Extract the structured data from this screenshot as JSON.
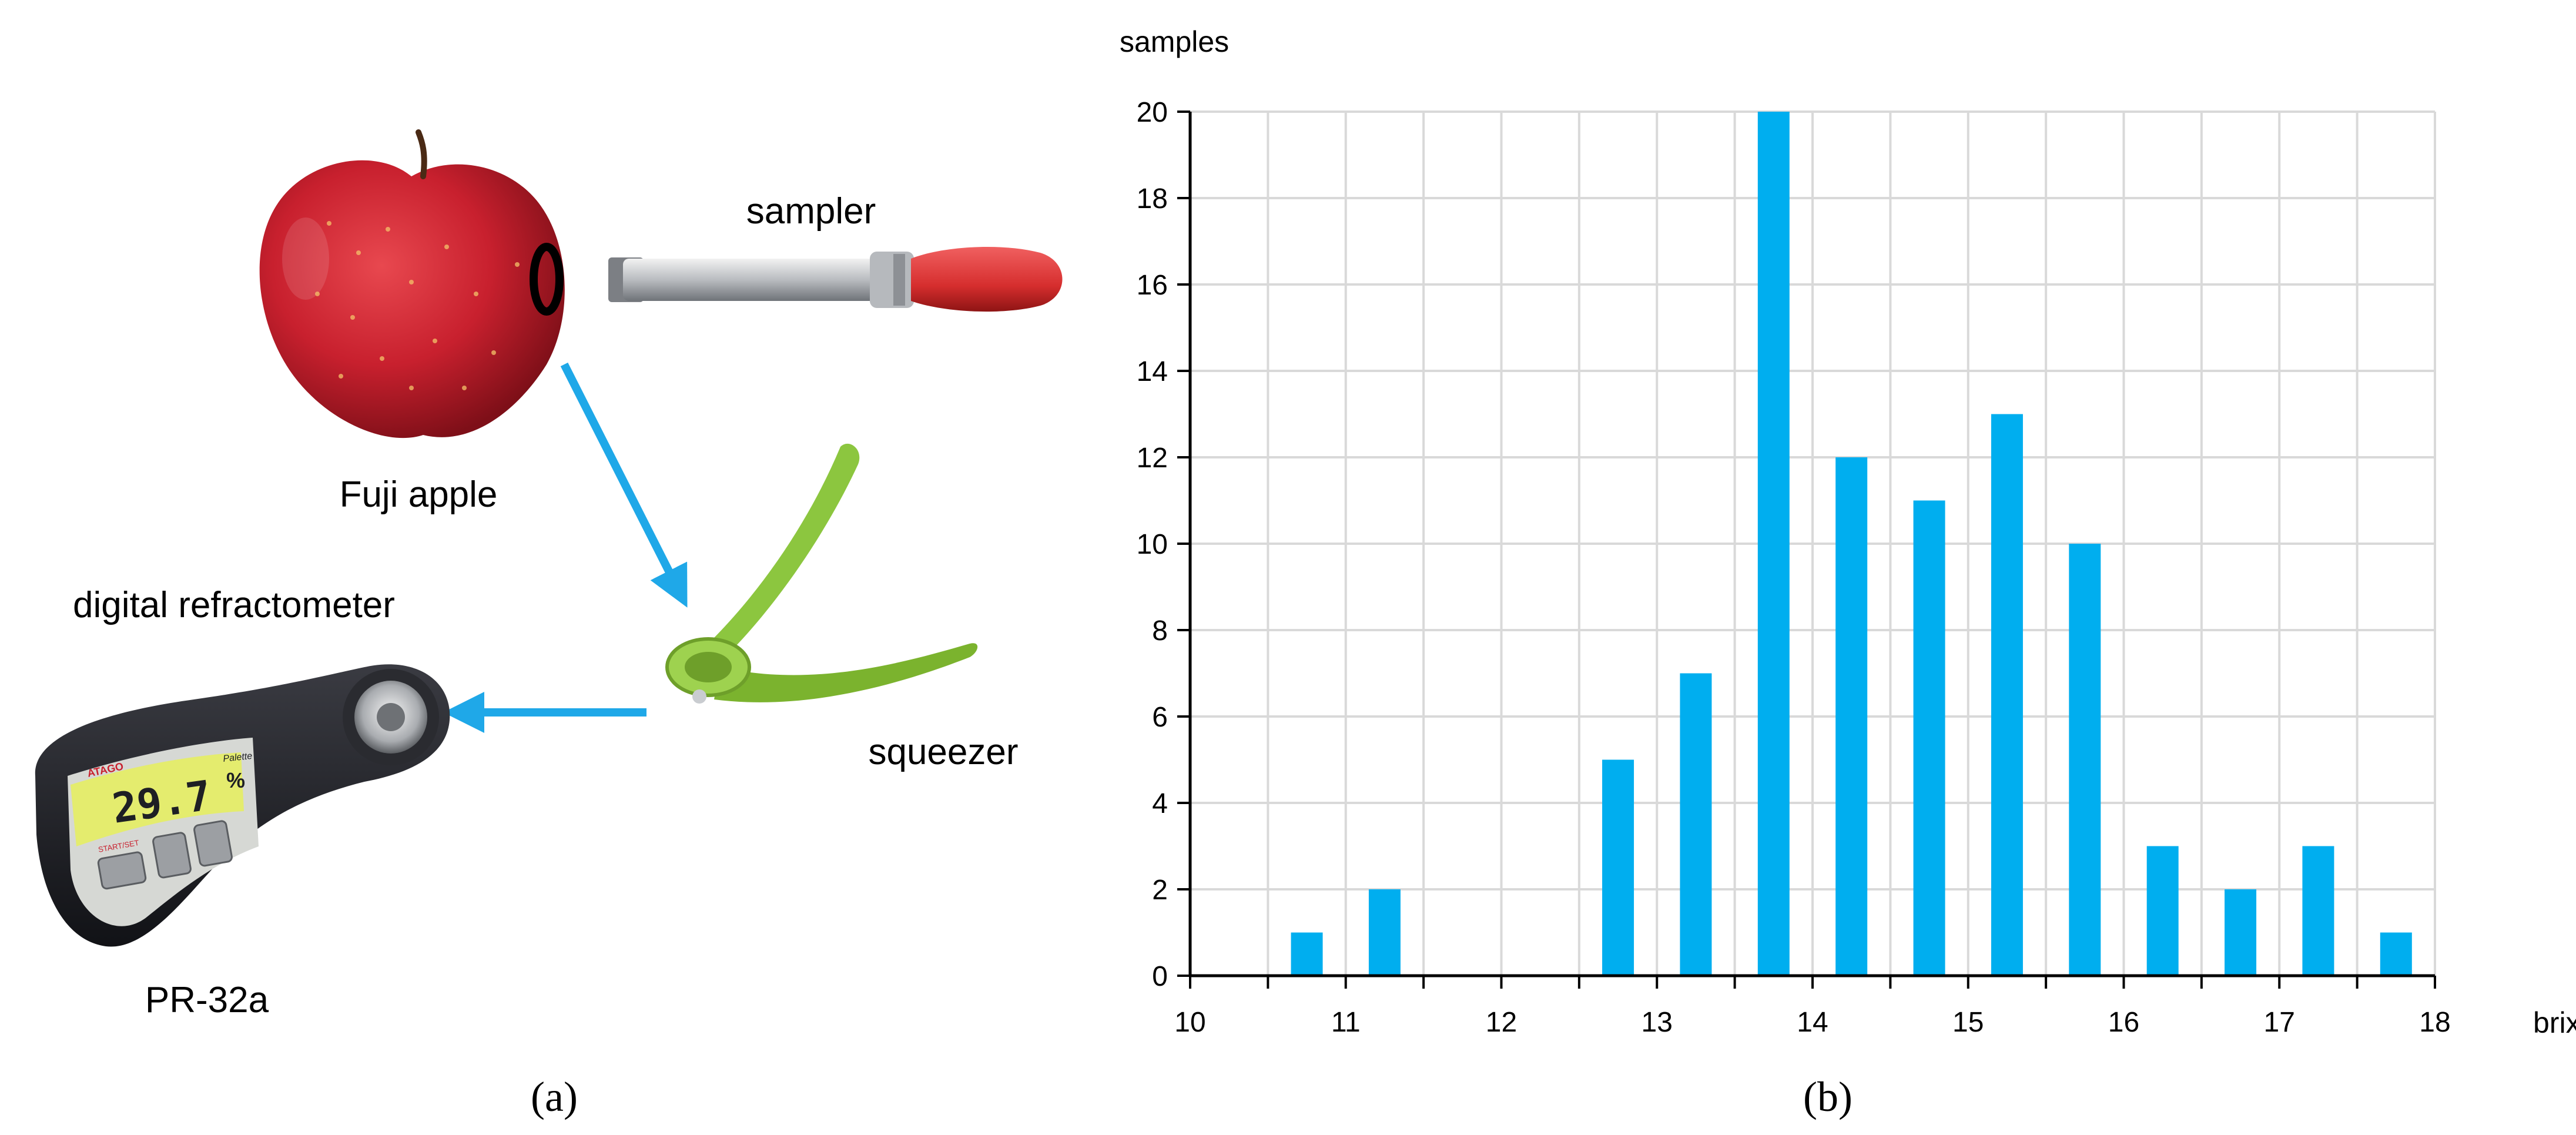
{
  "panel_a": {
    "labels": {
      "apple": "Fuji apple",
      "sampler": "sampler",
      "squeezer": "squeezer",
      "refractometer": "digital refractometer",
      "model": "PR-32a"
    },
    "display": {
      "brand": "ATAGO",
      "series": "Palette",
      "reading": "29.7",
      "unit": "%",
      "button": "START/SET"
    },
    "caption": "(a)"
  },
  "panel_b": {
    "caption": "(b)"
  },
  "colors": {
    "bar": "#00AEEF",
    "arrow": "#1FA8E8",
    "grid": "#D9D9D9",
    "apple": "#C8202E",
    "squeezer": "#8CC63F",
    "sampler_handle": "#D62E2E",
    "refractometer_body": "#1E1F24",
    "display": "#E4EC6E"
  },
  "chart_data": {
    "type": "bar",
    "xlabel": "brix",
    "ylabel": "samples",
    "xlim": [
      10,
      18
    ],
    "ylim": [
      0,
      20
    ],
    "xticks": [
      10,
      11,
      12,
      13,
      14,
      15,
      16,
      17,
      18
    ],
    "yticks": [
      0,
      2,
      4,
      6,
      8,
      10,
      12,
      14,
      16,
      18,
      20
    ],
    "grid": true,
    "x": [
      10.75,
      11.25,
      12.75,
      13.25,
      13.75,
      14.25,
      14.75,
      15.25,
      15.75,
      16.25,
      16.75,
      17.25,
      17.75
    ],
    "values": [
      1,
      2,
      5,
      7,
      20,
      12,
      11,
      13,
      10,
      3,
      2,
      3,
      1
    ]
  }
}
